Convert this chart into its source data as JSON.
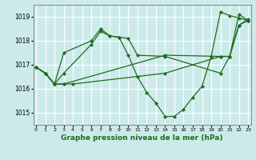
{
  "title": "Graphe pression niveau de la mer (hPa)",
  "bg_color": "#cceaea",
  "grid_color": "#ffffff",
  "line_color": "#1e6b1e",
  "ylim": [
    1014.5,
    1019.5
  ],
  "yticks": [
    1015,
    1016,
    1017,
    1018,
    1019
  ],
  "xlim": [
    -0.3,
    23.3
  ],
  "xticks": [
    0,
    1,
    2,
    3,
    4,
    5,
    6,
    7,
    8,
    9,
    10,
    11,
    12,
    13,
    14,
    15,
    16,
    17,
    18,
    19,
    20,
    21,
    22,
    23
  ],
  "series": [
    {
      "x": [
        0,
        1,
        2,
        3,
        14,
        20,
        21,
        22,
        23
      ],
      "y": [
        1016.9,
        1016.65,
        1016.2,
        1016.2,
        1017.4,
        1017.35,
        1017.35,
        1018.65,
        1018.9
      ]
    },
    {
      "x": [
        0,
        1,
        2,
        3,
        6,
        7,
        8,
        9,
        10,
        11,
        12,
        13,
        14,
        15,
        16,
        17,
        18,
        19,
        20,
        21,
        22,
        23
      ],
      "y": [
        1016.9,
        1016.65,
        1016.2,
        1017.5,
        1018.0,
        1018.5,
        1018.2,
        1018.15,
        1017.4,
        1016.5,
        1015.85,
        1015.4,
        1014.85,
        1014.85,
        1015.15,
        1015.65,
        1016.1,
        1017.35,
        1019.2,
        1019.05,
        1018.95,
        1018.85
      ]
    },
    {
      "x": [
        0,
        1,
        2,
        3,
        4,
        14,
        20,
        21,
        22,
        23
      ],
      "y": [
        1016.9,
        1016.65,
        1016.2,
        1016.2,
        1016.2,
        1016.65,
        1017.35,
        1017.35,
        1018.65,
        1018.85
      ]
    },
    {
      "x": [
        0,
        1,
        2,
        3,
        6,
        7,
        8,
        9,
        10,
        11,
        14,
        20,
        21,
        22,
        23
      ],
      "y": [
        1016.9,
        1016.65,
        1016.2,
        1016.65,
        1017.85,
        1018.4,
        1018.2,
        1018.15,
        1018.1,
        1017.4,
        1017.35,
        1016.65,
        1017.35,
        1019.1,
        1018.85
      ]
    }
  ]
}
